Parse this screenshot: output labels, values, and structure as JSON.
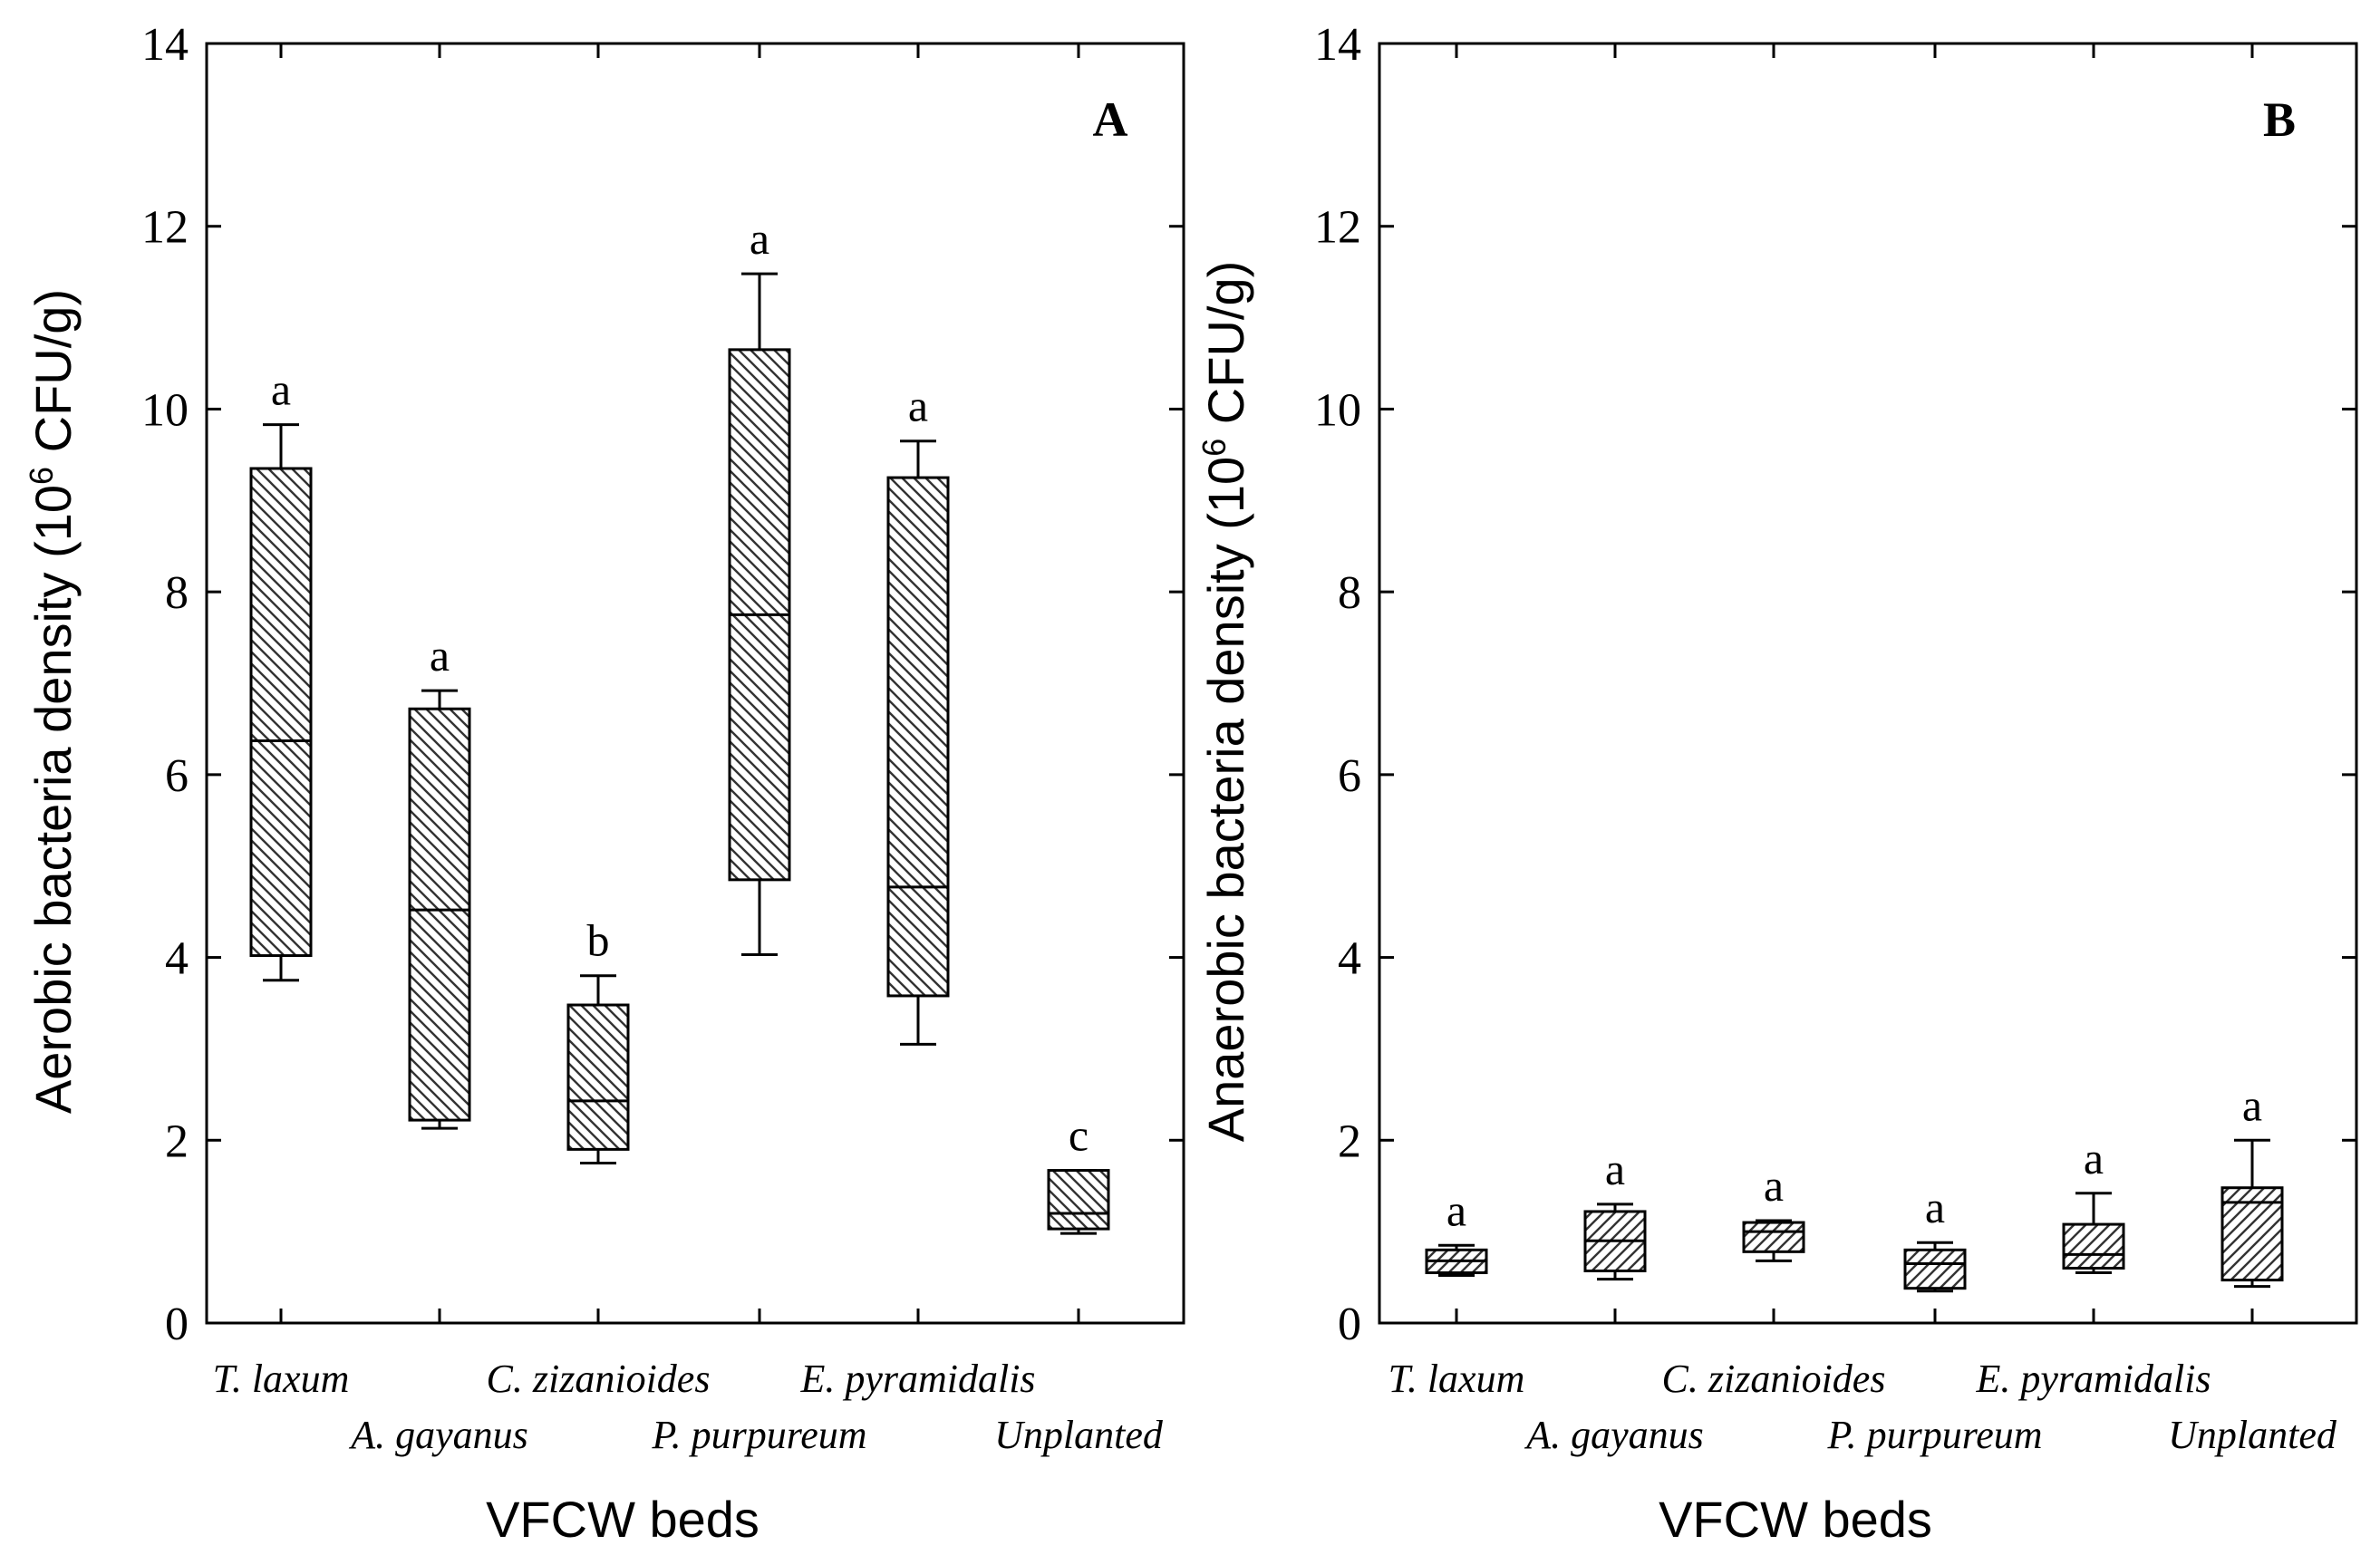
{
  "chart_data": [
    {
      "type": "box",
      "panel_label": "A",
      "ylabel": "Aerobic bacteria density (10",
      "ylabel_sup": "6",
      "ylabel_unit": "CFU/g)",
      "xlabel": "VFCW beds",
      "ylim": [
        0,
        14
      ],
      "yticks": [
        0,
        2,
        4,
        6,
        8,
        10,
        12,
        14
      ],
      "categories": [
        "T. laxum",
        "A. gayanus",
        "C. zizanioides",
        "P. purpureum",
        "E. pyramidalis",
        "Unplanted"
      ],
      "boxes": [
        {
          "min": 3.75,
          "q1": 4.02,
          "median": 6.37,
          "q3": 9.35,
          "max": 9.83,
          "letter": "a"
        },
        {
          "min": 2.13,
          "q1": 2.22,
          "median": 4.52,
          "q3": 6.72,
          "max": 6.92,
          "letter": "a"
        },
        {
          "min": 1.75,
          "q1": 1.9,
          "median": 2.43,
          "q3": 3.48,
          "max": 3.8,
          "letter": "b"
        },
        {
          "min": 4.03,
          "q1": 4.85,
          "median": 7.75,
          "q3": 10.65,
          "max": 11.48,
          "letter": "a"
        },
        {
          "min": 3.05,
          "q1": 3.58,
          "median": 4.77,
          "q3": 9.25,
          "max": 9.65,
          "letter": "a"
        },
        {
          "min": 0.98,
          "q1": 1.03,
          "median": 1.2,
          "q3": 1.67,
          "max": 1.67,
          "letter": "c"
        }
      ]
    },
    {
      "type": "box",
      "panel_label": "B",
      "ylabel": "Anaerobic bacteria density (10",
      "ylabel_sup": "6",
      "ylabel_unit": "CFU/g)",
      "xlabel": "VFCW beds",
      "ylim": [
        0,
        14
      ],
      "yticks": [
        0,
        2,
        4,
        6,
        8,
        10,
        12,
        14
      ],
      "categories": [
        "T. laxum",
        "A. gayanus",
        "C. zizanioides",
        "P. purpureum",
        "E. pyramidalis",
        "Unplanted"
      ],
      "boxes": [
        {
          "min": 0.52,
          "q1": 0.55,
          "median": 0.68,
          "q3": 0.8,
          "max": 0.85,
          "letter": "a"
        },
        {
          "min": 0.48,
          "q1": 0.57,
          "median": 0.9,
          "q3": 1.22,
          "max": 1.3,
          "letter": "a"
        },
        {
          "min": 0.68,
          "q1": 0.78,
          "median": 1.0,
          "q3": 1.1,
          "max": 1.12,
          "letter": "a"
        },
        {
          "min": 0.35,
          "q1": 0.38,
          "median": 0.65,
          "q3": 0.8,
          "max": 0.88,
          "letter": "a"
        },
        {
          "min": 0.55,
          "q1": 0.6,
          "median": 0.75,
          "q3": 1.08,
          "max": 1.42,
          "letter": "a"
        },
        {
          "min": 0.4,
          "q1": 0.47,
          "median": 1.32,
          "q3": 1.48,
          "max": 2.0,
          "letter": "a"
        }
      ]
    }
  ]
}
